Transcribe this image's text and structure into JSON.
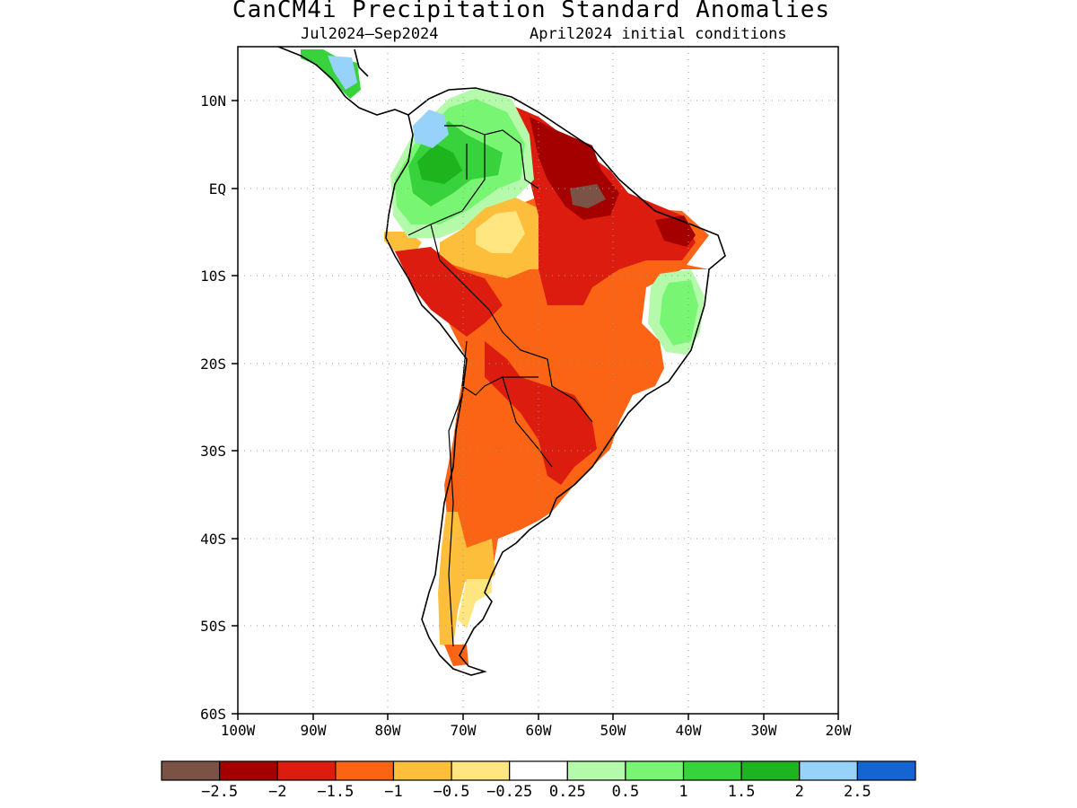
{
  "header": {
    "title": "CanCM4i Precipitation Standard Anomalies",
    "period": "Jul2024–Sep2024",
    "init": "April2024 initial conditions"
  },
  "axes": {
    "lat_labels": [
      "10N",
      "EQ",
      "10S",
      "20S",
      "30S",
      "40S",
      "50S",
      "60S"
    ],
    "lon_labels": [
      "100W",
      "90W",
      "80W",
      "70W",
      "60W",
      "50W",
      "40W",
      "30W",
      "20W"
    ]
  },
  "colorbar": {
    "colors": [
      "#7a5246",
      "#a50000",
      "#dc1c0e",
      "#fa6414",
      "#fdbe3c",
      "#ffe680",
      "#ffffff",
      "#b4faaa",
      "#78f573",
      "#37d23c",
      "#1eb41e",
      "#96d2fa",
      "#1464d2"
    ],
    "labels": [
      "−2.5",
      "−2",
      "−1.5",
      "−1",
      "−0.5",
      "−0.25",
      "0.25",
      "0.5",
      "1",
      "1.5",
      "2",
      "2.5"
    ]
  }
}
